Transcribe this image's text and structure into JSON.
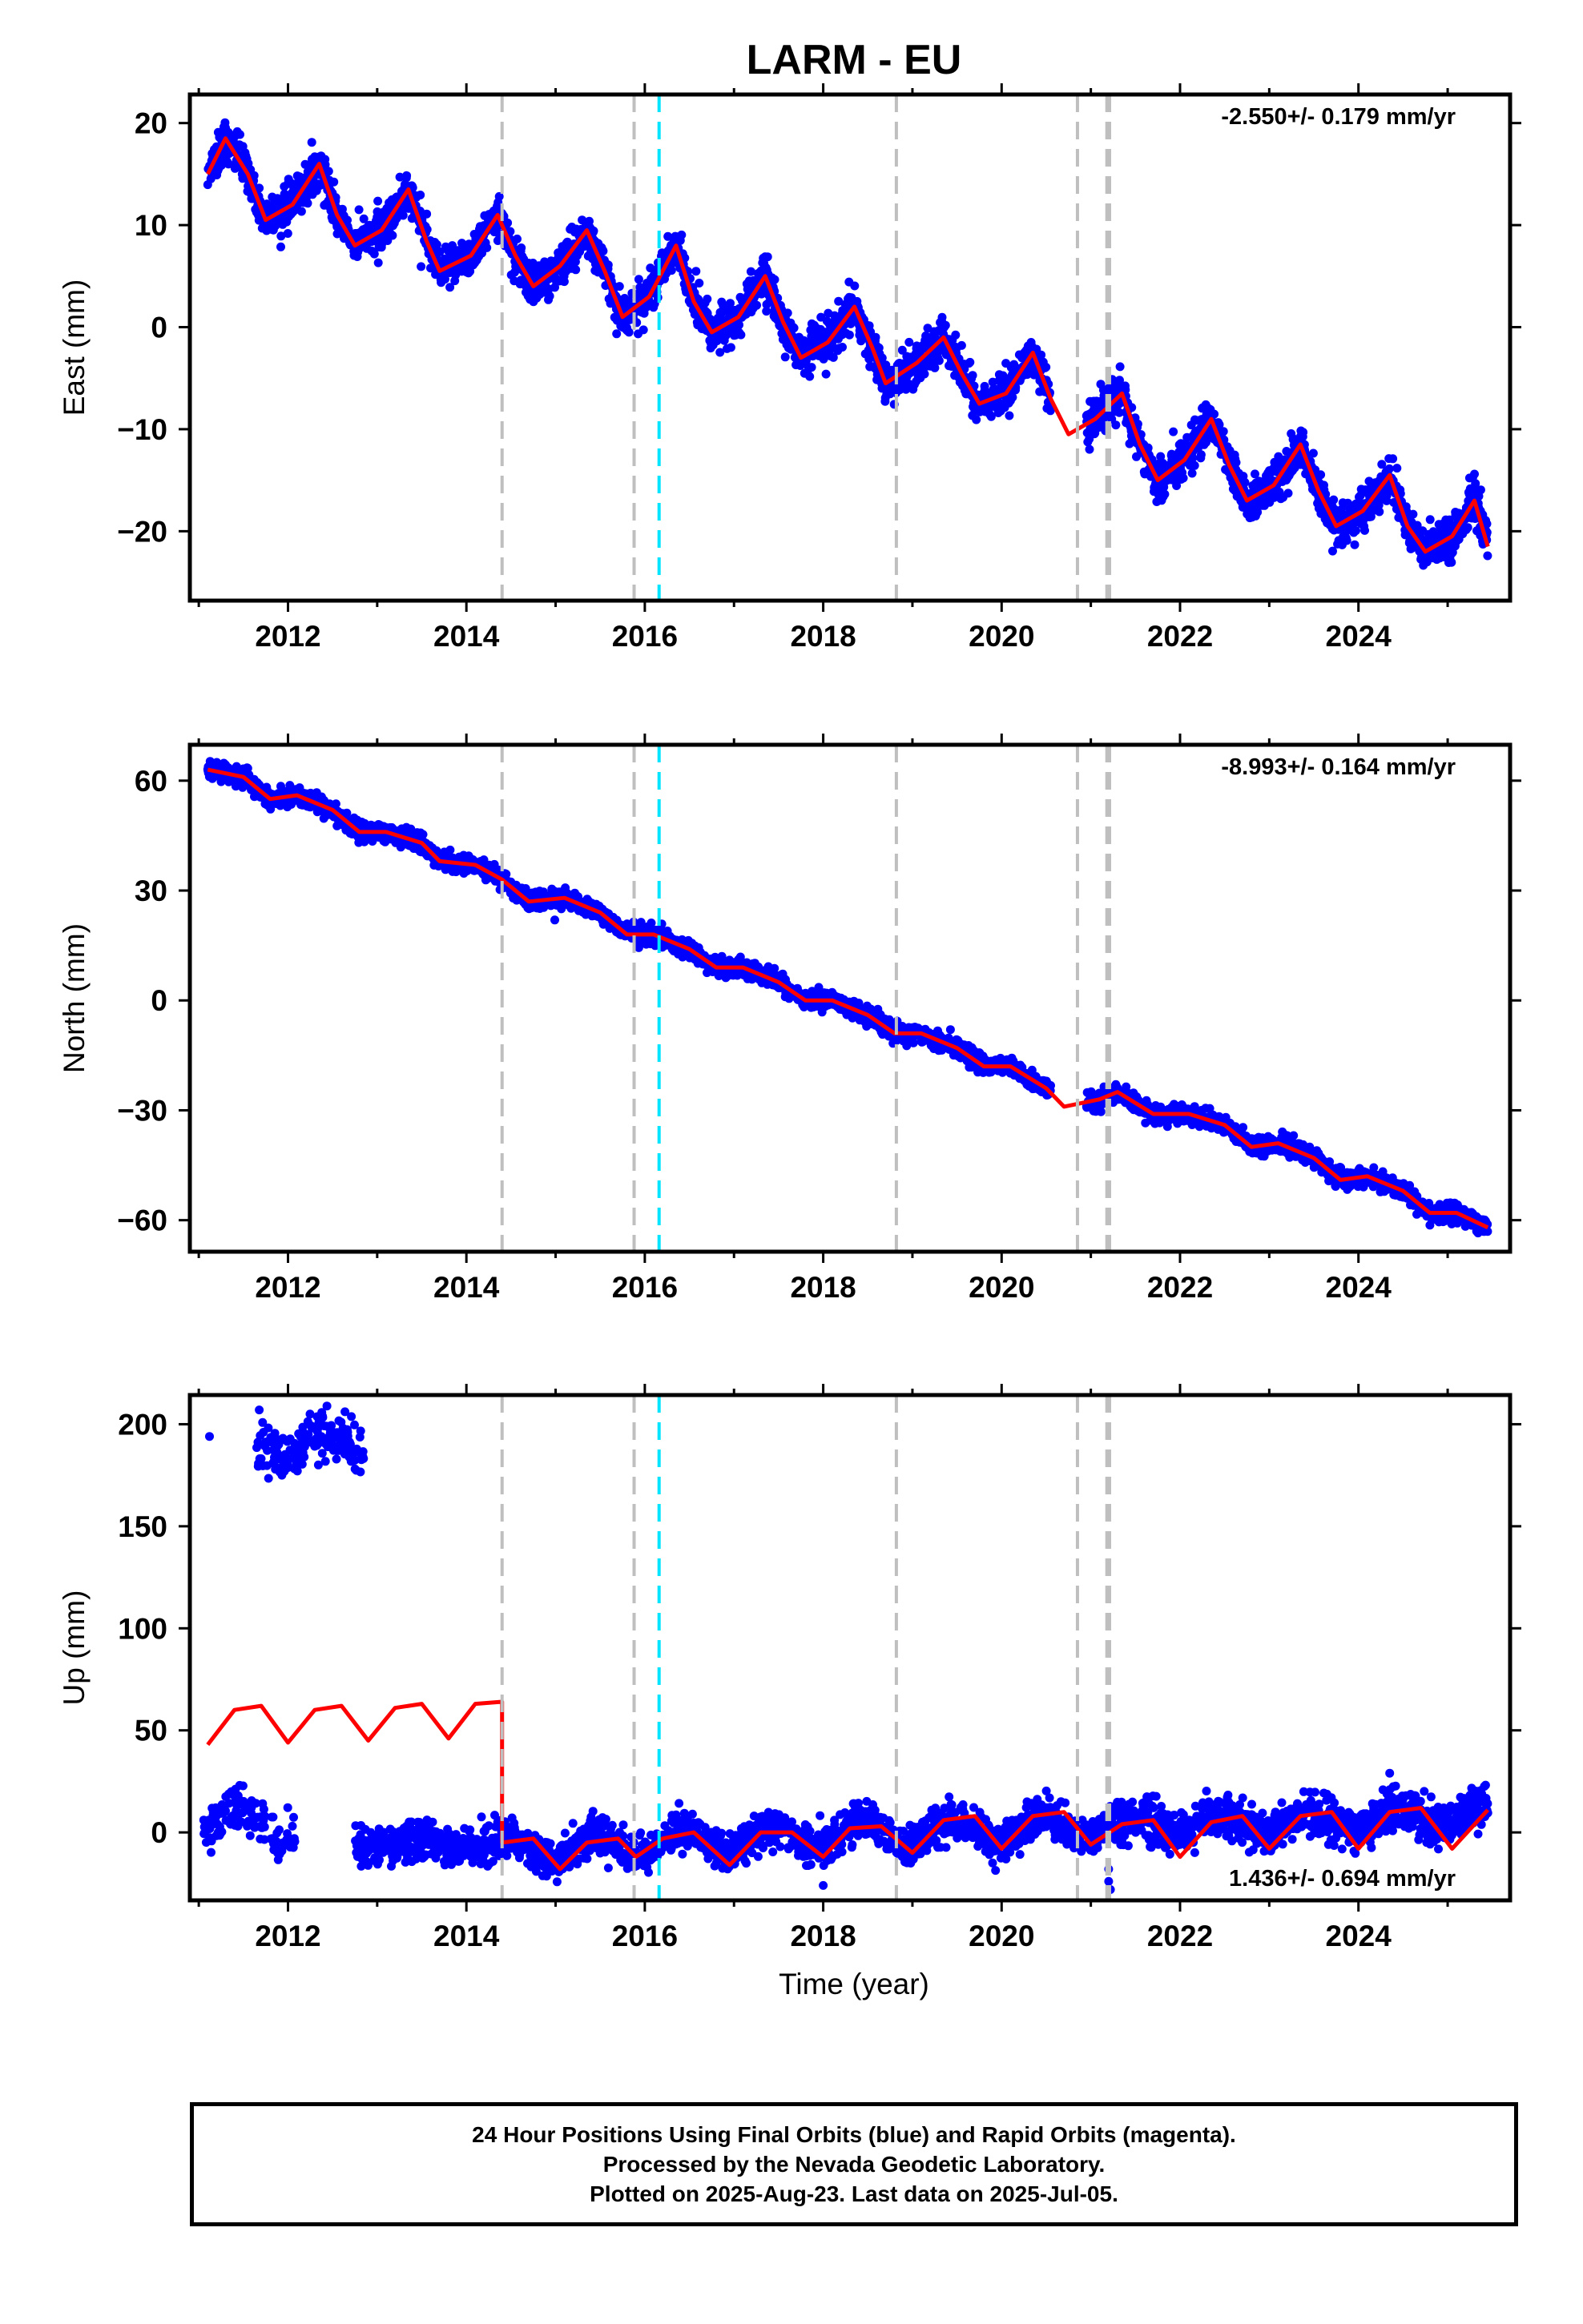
{
  "colors": {
    "observations": "#0000ff",
    "model": "#ff0000",
    "event_gray": "#bfbfbf",
    "event_cyan": "#00e5ff",
    "frame": "#000000"
  },
  "chart_data": {
    "type": "scatter",
    "title": "LARM - EU",
    "xlabel": "Time (year)",
    "x_tick_labels": [
      "2012",
      "2014",
      "2016",
      "2018",
      "2020",
      "2022",
      "2024"
    ],
    "xlim": [
      2010.9,
      2025.7
    ],
    "vertical_event_lines": [
      {
        "x": 2014.4,
        "color": "gray"
      },
      {
        "x": 2015.88,
        "color": "gray"
      },
      {
        "x": 2016.16,
        "color": "cyan"
      },
      {
        "x": 2018.82,
        "color": "gray"
      },
      {
        "x": 2020.85,
        "color": "gray"
      },
      {
        "x": 2021.18,
        "color": "gray"
      },
      {
        "x": 2021.21,
        "color": "gray"
      }
    ],
    "panels": [
      {
        "ylabel": "East (mm)",
        "ylim": [
          -26.8,
          22.8
        ],
        "yticks": [
          20,
          10,
          0,
          -10,
          -20
        ],
        "ytick_labels": [
          "20",
          "10",
          "0",
          "−10",
          "−20"
        ],
        "rate_label": "-2.550+/- 0.179 mm/yr",
        "rate_position": "top-right",
        "trend": {
          "start": 2011.1,
          "end": 2025.45,
          "value_at_start": 16.5,
          "rate": -2.55
        },
        "seasonal_amplitude": 4.0,
        "noise": 1.0,
        "model_points": [
          [
            2011.1,
            15.0
          ],
          [
            2011.3,
            18.5
          ],
          [
            2011.55,
            15.0
          ],
          [
            2011.75,
            10.5
          ],
          [
            2012.05,
            12.0
          ],
          [
            2012.35,
            16.0
          ],
          [
            2012.55,
            11.0
          ],
          [
            2012.75,
            8.0
          ],
          [
            2013.05,
            9.5
          ],
          [
            2013.35,
            13.5
          ],
          [
            2013.55,
            8.5
          ],
          [
            2013.7,
            5.5
          ],
          [
            2014.05,
            7.0
          ],
          [
            2014.35,
            11.0
          ],
          [
            2014.55,
            7.0
          ],
          [
            2014.75,
            4.0
          ],
          [
            2015.05,
            6.0
          ],
          [
            2015.35,
            9.5
          ],
          [
            2015.55,
            5.5
          ],
          [
            2015.75,
            1.0
          ],
          [
            2016.05,
            3.0
          ],
          [
            2016.35,
            8.0
          ],
          [
            2016.55,
            2.5
          ],
          [
            2016.75,
            -0.5
          ],
          [
            2017.05,
            1.0
          ],
          [
            2017.35,
            5.0
          ],
          [
            2017.55,
            0.5
          ],
          [
            2017.75,
            -3.0
          ],
          [
            2018.05,
            -1.5
          ],
          [
            2018.35,
            2.0
          ],
          [
            2018.55,
            -2.0
          ],
          [
            2018.7,
            -5.5
          ],
          [
            2019.05,
            -3.5
          ],
          [
            2019.35,
            -1.0
          ],
          [
            2019.55,
            -4.5
          ],
          [
            2019.75,
            -7.5
          ],
          [
            2020.05,
            -6.5
          ],
          [
            2020.35,
            -2.5
          ],
          [
            2020.55,
            -7.0
          ],
          [
            2020.75,
            -10.5
          ],
          [
            2021.05,
            -9.0
          ],
          [
            2021.35,
            -6.5
          ],
          [
            2021.55,
            -11.5
          ],
          [
            2021.75,
            -15.0
          ],
          [
            2022.05,
            -13.0
          ],
          [
            2022.35,
            -9.0
          ],
          [
            2022.55,
            -13.5
          ],
          [
            2022.75,
            -17.0
          ],
          [
            2023.05,
            -15.5
          ],
          [
            2023.35,
            -11.5
          ],
          [
            2023.55,
            -16.0
          ],
          [
            2023.75,
            -19.5
          ],
          [
            2024.05,
            -18.0
          ],
          [
            2024.35,
            -14.5
          ],
          [
            2024.55,
            -19.5
          ],
          [
            2024.75,
            -22.0
          ],
          [
            2025.05,
            -20.5
          ],
          [
            2025.3,
            -17.0
          ],
          [
            2025.45,
            -21.5
          ]
        ]
      },
      {
        "ylabel": "North (mm)",
        "ylim": [
          -68.6,
          69.8
        ],
        "yticks": [
          60,
          30,
          0,
          -30,
          -60
        ],
        "ytick_labels": [
          "60",
          "30",
          "0",
          "−30",
          "−60"
        ],
        "rate_label": "-8.993+/- 0.164 mm/yr",
        "rate_position": "top-right",
        "trend": {
          "start": 2011.1,
          "end": 2025.45,
          "value_at_start": 63.0,
          "rate": -8.993
        },
        "seasonal_amplitude": 1.8,
        "noise": 1.2,
        "model_points": [
          [
            2011.1,
            63.0
          ],
          [
            2011.5,
            61.0
          ],
          [
            2011.8,
            55.0
          ],
          [
            2012.1,
            56.0
          ],
          [
            2012.5,
            52.0
          ],
          [
            2012.8,
            46.0
          ],
          [
            2013.1,
            46.0
          ],
          [
            2013.5,
            43.0
          ],
          [
            2013.7,
            38.0
          ],
          [
            2014.1,
            37.0
          ],
          [
            2014.4,
            33.0
          ],
          [
            2014.7,
            27.0
          ],
          [
            2015.1,
            28.0
          ],
          [
            2015.5,
            24.0
          ],
          [
            2015.8,
            18.0
          ],
          [
            2016.1,
            18.0
          ],
          [
            2016.5,
            14.0
          ],
          [
            2016.8,
            9.0
          ],
          [
            2017.1,
            9.0
          ],
          [
            2017.5,
            5.0
          ],
          [
            2017.8,
            0.0
          ],
          [
            2018.1,
            0.0
          ],
          [
            2018.5,
            -4.0
          ],
          [
            2018.8,
            -9.0
          ],
          [
            2019.1,
            -9.0
          ],
          [
            2019.5,
            -13.0
          ],
          [
            2019.8,
            -18.0
          ],
          [
            2020.1,
            -18.0
          ],
          [
            2020.5,
            -24.0
          ],
          [
            2020.7,
            -29.0
          ],
          [
            2021.1,
            -27.0
          ],
          [
            2021.3,
            -25.0
          ],
          [
            2021.7,
            -31.0
          ],
          [
            2022.1,
            -31.0
          ],
          [
            2022.5,
            -34.0
          ],
          [
            2022.8,
            -40.0
          ],
          [
            2023.1,
            -39.0
          ],
          [
            2023.5,
            -43.0
          ],
          [
            2023.8,
            -49.0
          ],
          [
            2024.1,
            -48.0
          ],
          [
            2024.5,
            -52.0
          ],
          [
            2024.8,
            -58.0
          ],
          [
            2025.1,
            -58.0
          ],
          [
            2025.45,
            -62.0
          ]
        ]
      },
      {
        "ylabel": "Up (mm)",
        "ylim": [
          -33.3,
          214.3
        ],
        "yticks": [
          200,
          150,
          100,
          50,
          0
        ],
        "ytick_labels": [
          "200",
          "150",
          "100",
          "50",
          "0"
        ],
        "rate_label": "1.436+/- 0.694 mm/yr",
        "rate_position": "bottom-right",
        "model_points": [
          [
            2011.1,
            43.0
          ],
          [
            2011.4,
            60.0
          ],
          [
            2011.7,
            62.0
          ],
          [
            2012.0,
            44.0
          ],
          [
            2012.3,
            60.0
          ],
          [
            2012.6,
            62.0
          ],
          [
            2012.9,
            45.0
          ],
          [
            2013.2,
            61.0
          ],
          [
            2013.5,
            63.0
          ],
          [
            2013.8,
            46.0
          ],
          [
            2014.1,
            63.0
          ],
          [
            2014.4,
            64.0
          ],
          [
            2014.4,
            -5.0
          ],
          [
            2014.75,
            -3.0
          ],
          [
            2015.05,
            -18.0
          ],
          [
            2015.35,
            -5.0
          ],
          [
            2015.7,
            -3.0
          ],
          [
            2015.9,
            -12.0
          ],
          [
            2016.2,
            -3.0
          ],
          [
            2016.55,
            0.0
          ],
          [
            2016.95,
            -16.0
          ],
          [
            2017.3,
            0.0
          ],
          [
            2017.65,
            0.0
          ],
          [
            2018.0,
            -12.0
          ],
          [
            2018.3,
            2.0
          ],
          [
            2018.65,
            3.0
          ],
          [
            2019.0,
            -10.0
          ],
          [
            2019.35,
            6.0
          ],
          [
            2019.7,
            8.0
          ],
          [
            2020.0,
            -8.0
          ],
          [
            2020.35,
            8.0
          ],
          [
            2020.7,
            10.0
          ],
          [
            2021.0,
            -6.0
          ],
          [
            2021.35,
            4.0
          ],
          [
            2021.7,
            6.0
          ],
          [
            2022.0,
            -12.0
          ],
          [
            2022.35,
            5.0
          ],
          [
            2022.7,
            8.0
          ],
          [
            2023.0,
            -8.0
          ],
          [
            2023.35,
            8.0
          ],
          [
            2023.7,
            10.0
          ],
          [
            2024.0,
            -8.0
          ],
          [
            2024.35,
            10.0
          ],
          [
            2024.7,
            12.0
          ],
          [
            2025.05,
            -8.0
          ],
          [
            2025.45,
            11.0
          ]
        ],
        "observation_segments": [
          {
            "start": 2011.05,
            "end": 2011.75,
            "center": 5.0,
            "amplitude": 7.0,
            "noise": 5.0,
            "density": 0.35
          },
          {
            "start": 2011.8,
            "end": 2012.1,
            "center": 0.0,
            "amplitude": 2.0,
            "noise": 5.0,
            "density": 0.25
          },
          {
            "start": 2011.65,
            "end": 2012.85,
            "center": 190.0,
            "amplitude": 7.0,
            "noise": 6.0,
            "density": 0.4
          },
          {
            "start": 2012.75,
            "end": 2014.4,
            "center": -6.0,
            "amplitude": 2.0,
            "noise": 5.0,
            "density": 0.5
          },
          {
            "start": 2014.4,
            "end": 2021.25,
            "trend_start": -8.0,
            "trend_rate": 1.7,
            "amplitude": 6.0,
            "noise": 4.5,
            "density": 0.6
          },
          {
            "start": 2021.25,
            "end": 2025.45,
            "trend_start": 2.0,
            "trend_rate": 1.5,
            "amplitude": 5.0,
            "noise": 5.0,
            "density": 0.6
          }
        ]
      }
    ]
  },
  "footer": {
    "line1": "24 Hour Positions Using Final Orbits (blue) and Rapid Orbits (magenta).",
    "line2": "Processed by the Nevada Geodetic Laboratory.",
    "line3": "Plotted on 2025-Aug-23. Last data on 2025-Jul-05."
  }
}
